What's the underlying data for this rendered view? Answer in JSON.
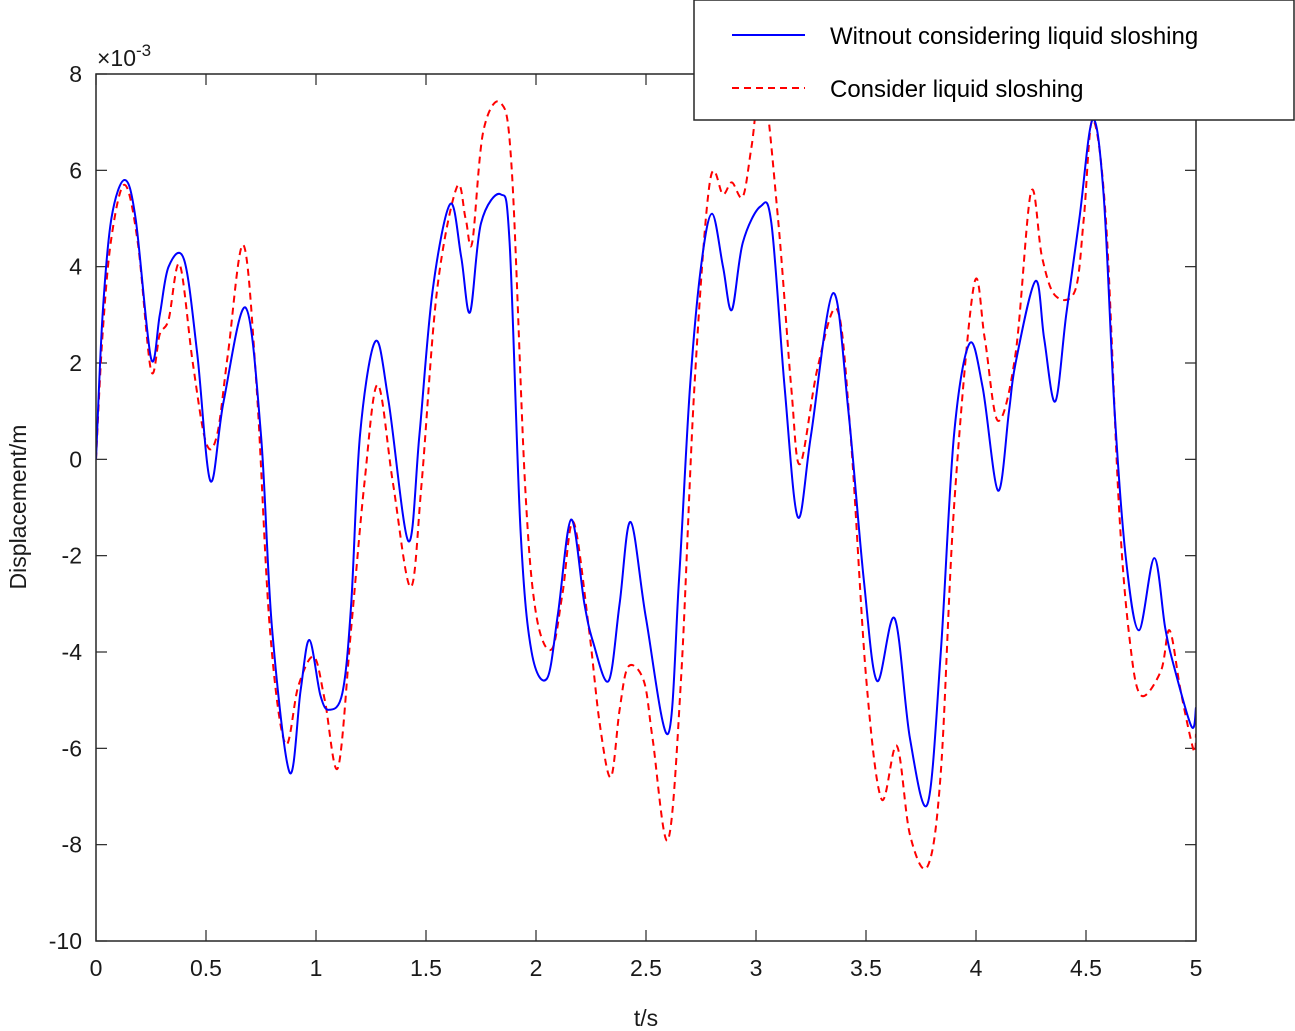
{
  "chart_data": {
    "type": "line",
    "title": "",
    "xlabel": "t/s",
    "ylabel": "Displacement/m",
    "y_exponent_label": "×10",
    "y_exponent_power": "-3",
    "xlim": [
      0,
      5
    ],
    "ylim": [
      -10,
      8
    ],
    "xticks": [
      0,
      0.5,
      1,
      1.5,
      2,
      2.5,
      3,
      3.5,
      4,
      4.5,
      5
    ],
    "xtick_labels": [
      "0",
      "0.5",
      "1",
      "1.5",
      "2",
      "2.5",
      "3",
      "3.5",
      "4",
      "4.5",
      "5"
    ],
    "yticks": [
      -10,
      -8,
      -6,
      -4,
      -2,
      0,
      2,
      4,
      6,
      8
    ],
    "ytick_labels": [
      "-10",
      "-8",
      "-6",
      "-4",
      "-2",
      "0",
      "2",
      "4",
      "6",
      "8"
    ],
    "grid": false,
    "legend_position": "top-right (outside, overlapping top edge)",
    "series": [
      {
        "name": "Witnout considering liquid sloshing",
        "color": "#0000ff",
        "style": "solid",
        "points": [
          [
            0,
            0
          ],
          [
            0.03,
            3.0
          ],
          [
            0.07,
            5.0
          ],
          [
            0.13,
            5.8
          ],
          [
            0.18,
            5.0
          ],
          [
            0.25,
            2.1
          ],
          [
            0.29,
            3.0
          ],
          [
            0.33,
            4.0
          ],
          [
            0.4,
            4.15
          ],
          [
            0.46,
            2.2
          ],
          [
            0.52,
            -0.45
          ],
          [
            0.58,
            1.2
          ],
          [
            0.68,
            3.15
          ],
          [
            0.75,
            0.5
          ],
          [
            0.8,
            -3.5
          ],
          [
            0.88,
            -6.5
          ],
          [
            0.93,
            -4.8
          ],
          [
            0.97,
            -3.75
          ],
          [
            1.02,
            -4.9
          ],
          [
            1.06,
            -5.2
          ],
          [
            1.12,
            -4.85
          ],
          [
            1.16,
            -3.0
          ],
          [
            1.2,
            0.5
          ],
          [
            1.27,
            2.45
          ],
          [
            1.33,
            1.2
          ],
          [
            1.42,
            -1.7
          ],
          [
            1.47,
            0.5
          ],
          [
            1.53,
            3.5
          ],
          [
            1.61,
            5.3
          ],
          [
            1.66,
            4.2
          ],
          [
            1.7,
            3.05
          ],
          [
            1.75,
            4.9
          ],
          [
            1.84,
            5.5
          ],
          [
            1.88,
            4.5
          ],
          [
            1.93,
            -1.5
          ],
          [
            1.98,
            -4.0
          ],
          [
            2.05,
            -4.55
          ],
          [
            2.1,
            -3.2
          ],
          [
            2.16,
            -1.25
          ],
          [
            2.22,
            -3.0
          ],
          [
            2.26,
            -3.8
          ],
          [
            2.33,
            -4.6
          ],
          [
            2.38,
            -3.0
          ],
          [
            2.43,
            -1.3
          ],
          [
            2.5,
            -3.3
          ],
          [
            2.6,
            -5.7
          ],
          [
            2.65,
            -2.5
          ],
          [
            2.7,
            1.5
          ],
          [
            2.75,
            4.0
          ],
          [
            2.8,
            5.1
          ],
          [
            2.85,
            4.0
          ],
          [
            2.89,
            3.1
          ],
          [
            2.94,
            4.5
          ],
          [
            3.02,
            5.25
          ],
          [
            3.07,
            4.9
          ],
          [
            3.13,
            1.5
          ],
          [
            3.19,
            -1.2
          ],
          [
            3.25,
            0.5
          ],
          [
            3.35,
            3.45
          ],
          [
            3.42,
            1.0
          ],
          [
            3.49,
            -2.5
          ],
          [
            3.55,
            -4.6
          ],
          [
            3.63,
            -3.3
          ],
          [
            3.7,
            -5.8
          ],
          [
            3.78,
            -7.15
          ],
          [
            3.84,
            -4.0
          ],
          [
            3.9,
            0.5
          ],
          [
            3.97,
            2.4
          ],
          [
            4.03,
            1.5
          ],
          [
            4.1,
            -0.65
          ],
          [
            4.15,
            1.0
          ],
          [
            4.18,
            2.0
          ],
          [
            4.27,
            3.7
          ],
          [
            4.31,
            2.5
          ],
          [
            4.36,
            1.2
          ],
          [
            4.41,
            3.0
          ],
          [
            4.47,
            5.0
          ],
          [
            4.53,
            7.05
          ],
          [
            4.58,
            5.5
          ],
          [
            4.63,
            1.0
          ],
          [
            4.68,
            -2.0
          ],
          [
            4.74,
            -3.55
          ],
          [
            4.81,
            -2.05
          ],
          [
            4.86,
            -3.5
          ],
          [
            4.9,
            -4.3
          ],
          [
            4.98,
            -5.55
          ],
          [
            5.0,
            -5.15
          ]
        ]
      },
      {
        "name": "Consider liquid sloshing",
        "color": "#ff0000",
        "style": "dashed",
        "points": [
          [
            0,
            0
          ],
          [
            0.03,
            2.6
          ],
          [
            0.07,
            4.6
          ],
          [
            0.13,
            5.7
          ],
          [
            0.19,
            4.5
          ],
          [
            0.25,
            1.85
          ],
          [
            0.29,
            2.6
          ],
          [
            0.33,
            2.9
          ],
          [
            0.38,
            4.05
          ],
          [
            0.44,
            2.0
          ],
          [
            0.5,
            0.35
          ],
          [
            0.55,
            0.5
          ],
          [
            0.6,
            2.2
          ],
          [
            0.67,
            4.45
          ],
          [
            0.73,
            1.5
          ],
          [
            0.79,
            -3.5
          ],
          [
            0.86,
            -5.9
          ],
          [
            0.92,
            -4.7
          ],
          [
            0.99,
            -4.1
          ],
          [
            1.04,
            -5.0
          ],
          [
            1.1,
            -6.4
          ],
          [
            1.16,
            -3.5
          ],
          [
            1.22,
            -0.5
          ],
          [
            1.28,
            1.55
          ],
          [
            1.35,
            -0.5
          ],
          [
            1.43,
            -2.65
          ],
          [
            1.48,
            -0.5
          ],
          [
            1.55,
            3.5
          ],
          [
            1.64,
            5.65
          ],
          [
            1.68,
            5.0
          ],
          [
            1.71,
            4.5
          ],
          [
            1.76,
            6.8
          ],
          [
            1.84,
            7.4
          ],
          [
            1.89,
            6.0
          ],
          [
            1.95,
            -0.5
          ],
          [
            2.0,
            -3.2
          ],
          [
            2.07,
            -3.95
          ],
          [
            2.12,
            -2.8
          ],
          [
            2.17,
            -1.3
          ],
          [
            2.24,
            -3.5
          ],
          [
            2.29,
            -5.5
          ],
          [
            2.34,
            -6.6
          ],
          [
            2.38,
            -5.2
          ],
          [
            2.42,
            -4.3
          ],
          [
            2.49,
            -4.6
          ],
          [
            2.53,
            -5.8
          ],
          [
            2.6,
            -7.9
          ],
          [
            2.66,
            -4.5
          ],
          [
            2.72,
            1.5
          ],
          [
            2.79,
            5.75
          ],
          [
            2.85,
            5.5
          ],
          [
            2.89,
            5.75
          ],
          [
            2.94,
            5.45
          ],
          [
            2.98,
            6.5
          ],
          [
            3.03,
            7.9
          ],
          [
            3.1,
            5.0
          ],
          [
            3.16,
            1.5
          ],
          [
            3.2,
            -0.1
          ],
          [
            3.28,
            1.9
          ],
          [
            3.37,
            3.1
          ],
          [
            3.43,
            0.5
          ],
          [
            3.5,
            -4.5
          ],
          [
            3.57,
            -7.05
          ],
          [
            3.64,
            -5.95
          ],
          [
            3.7,
            -7.8
          ],
          [
            3.78,
            -8.45
          ],
          [
            3.84,
            -6.5
          ],
          [
            3.9,
            -1.0
          ],
          [
            3.99,
            3.6
          ],
          [
            4.04,
            2.5
          ],
          [
            4.1,
            0.8
          ],
          [
            4.18,
            2.2
          ],
          [
            4.25,
            5.55
          ],
          [
            4.3,
            4.2
          ],
          [
            4.36,
            3.4
          ],
          [
            4.45,
            3.5
          ],
          [
            4.49,
            5.0
          ],
          [
            4.53,
            7.05
          ],
          [
            4.59,
            5.0
          ],
          [
            4.65,
            -1.0
          ],
          [
            4.7,
            -3.8
          ],
          [
            4.75,
            -4.9
          ],
          [
            4.84,
            -4.4
          ],
          [
            4.88,
            -3.55
          ],
          [
            4.93,
            -4.8
          ],
          [
            4.99,
            -6.05
          ],
          [
            5.0,
            -5.7
          ]
        ]
      }
    ]
  },
  "legend": {
    "items": [
      {
        "label": "Witnout considering liquid sloshing",
        "color": "#0000ff",
        "style": "solid"
      },
      {
        "label": "Consider liquid sloshing",
        "color": "#ff0000",
        "style": "dashed"
      }
    ]
  }
}
